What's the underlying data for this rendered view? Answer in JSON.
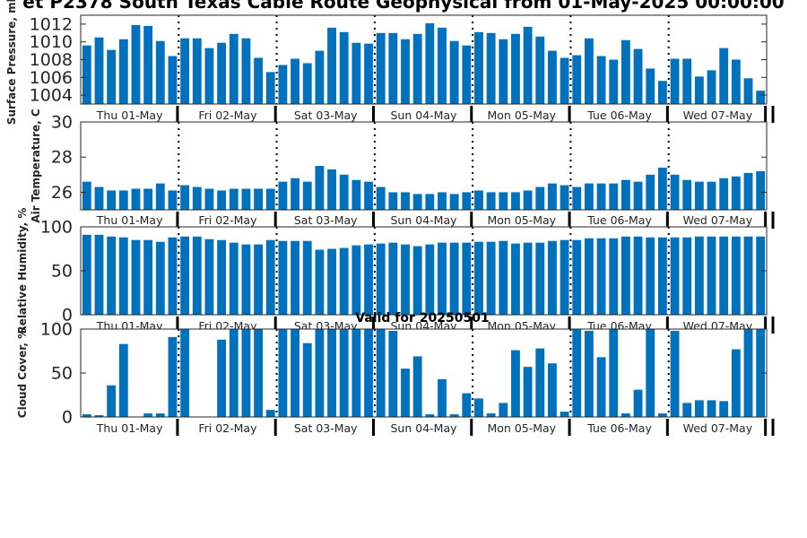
{
  "title": "et P2378 South Texas Cable Route Geophysical from 01-May-2025 00:00:00",
  "valid_label": "Valid for 20250501",
  "colors": {
    "bar": "#0072BD",
    "axis": "#262626",
    "divider": "#000000"
  },
  "chart_data": [
    {
      "type": "bar",
      "ylabel": "Surface Pressure, mb",
      "ylim": [
        1003,
        1013
      ],
      "yticks": [
        1004,
        1006,
        1008,
        1010,
        1012
      ],
      "days": [
        "Thu 01-May",
        "Fri 02-May",
        "Sat 03-May",
        "Sun 04-May",
        "Mon 05-May",
        "Tue 06-May",
        "Wed 07-May"
      ],
      "values": [
        1009.6,
        1010.5,
        1009.1,
        1010.3,
        1011.9,
        1011.8,
        1010.1,
        1008.4,
        1010.4,
        1010.4,
        1009.3,
        1009.9,
        1010.9,
        1010.4,
        1008.2,
        1006.6,
        1007.4,
        1008.1,
        1007.6,
        1009.0,
        1011.6,
        1011.1,
        1009.9,
        1009.8,
        1011.0,
        1011.0,
        1010.3,
        1010.9,
        1012.1,
        1011.6,
        1010.1,
        1009.6,
        1011.1,
        1011.0,
        1010.3,
        1010.9,
        1011.7,
        1010.6,
        1009.0,
        1008.2,
        1008.5,
        1010.4,
        1008.4,
        1008.0,
        1010.2,
        1009.2,
        1007.0,
        1005.6,
        1008.1,
        1008.1,
        1006.1,
        1006.8,
        1009.3,
        1008.0,
        1005.9,
        1004.5
      ]
    },
    {
      "type": "bar",
      "ylabel": "Air Temperature, C",
      "ylim": [
        25,
        30
      ],
      "yticks": [
        26,
        28,
        30
      ],
      "days": [
        "Thu 01-May",
        "Fri 02-May",
        "Sat 03-May",
        "Sun 04-May",
        "Mon 05-May",
        "Tue 06-May",
        "Wed 07-May"
      ],
      "values": [
        26.6,
        26.3,
        26.1,
        26.1,
        26.2,
        26.2,
        26.5,
        26.1,
        26.4,
        26.3,
        26.2,
        26.1,
        26.2,
        26.2,
        26.2,
        26.2,
        26.6,
        26.8,
        26.6,
        27.5,
        27.3,
        27.0,
        26.7,
        26.6,
        26.3,
        26.0,
        26.0,
        25.9,
        25.9,
        26.0,
        25.9,
        26.0,
        26.1,
        26.0,
        26.0,
        26.0,
        26.1,
        26.3,
        26.5,
        26.4,
        26.3,
        26.5,
        26.5,
        26.5,
        26.7,
        26.6,
        27.0,
        27.4,
        27.0,
        26.7,
        26.6,
        26.6,
        26.8,
        26.9,
        27.1,
        27.2
      ]
    },
    {
      "type": "bar",
      "ylabel": "Relative Humidity, %",
      "ylim": [
        0,
        100
      ],
      "yticks": [
        0,
        50,
        100
      ],
      "days": [
        "Thu 01-May",
        "Fri 02-May",
        "Sat 03-May",
        "Sun 04-May",
        "Mon 05-May",
        "Tue 06-May",
        "Wed 07-May"
      ],
      "values": [
        91,
        91,
        89,
        88,
        85,
        85,
        83,
        88,
        89,
        89,
        86,
        85,
        82,
        80,
        80,
        85,
        84,
        84,
        84,
        74,
        75,
        76,
        79,
        80,
        81,
        82,
        80,
        78,
        80,
        82,
        82,
        82,
        83,
        83,
        84,
        81,
        82,
        82,
        84,
        85,
        85,
        87,
        87,
        87,
        89,
        89,
        88,
        88,
        88,
        88,
        89,
        89,
        89,
        89,
        89,
        89
      ]
    },
    {
      "type": "bar",
      "ylabel": "Cloud Cover, %",
      "ylim": [
        0,
        100
      ],
      "yticks": [
        0,
        50,
        100
      ],
      "days": [
        "Thu 01-May",
        "Fri 02-May",
        "Sat 03-May",
        "Sun 04-May",
        "Mon 05-May",
        "Tue 06-May",
        "Wed 07-May"
      ],
      "values": [
        3,
        2,
        36,
        83,
        0,
        4,
        4,
        91,
        100,
        0,
        0,
        88,
        100,
        100,
        100,
        8,
        100,
        100,
        84,
        100,
        100,
        100,
        100,
        100,
        100,
        98,
        55,
        69,
        3,
        43,
        3,
        27,
        21,
        4,
        16,
        76,
        57,
        78,
        61,
        6,
        100,
        98,
        68,
        100,
        4,
        31,
        100,
        4,
        98,
        16,
        19,
        19,
        18,
        77,
        100,
        100
      ]
    }
  ]
}
